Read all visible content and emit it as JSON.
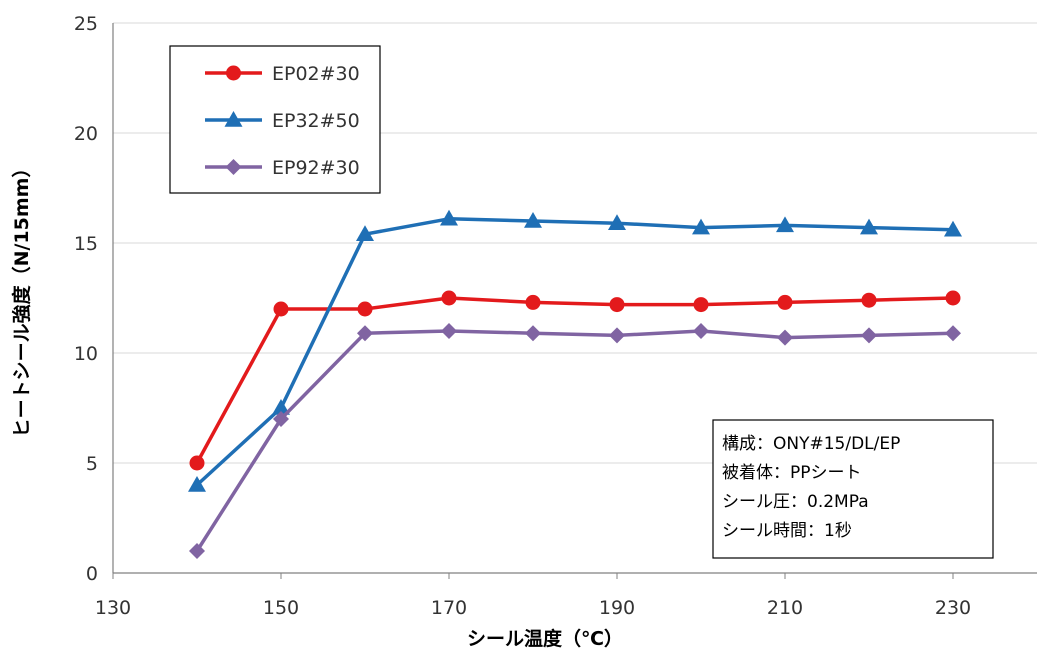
{
  "chart_data": {
    "type": "line",
    "xlabel": "シール温度（℃）",
    "ylabel": "ヒートシール強度（N/15mm）",
    "xlim": [
      130,
      240
    ],
    "ylim": [
      0,
      25
    ],
    "x_ticks": [
      130,
      150,
      170,
      190,
      210,
      230
    ],
    "y_ticks": [
      0,
      5,
      10,
      15,
      20,
      25
    ],
    "grid": "horizontal",
    "legend_position": "top-left",
    "x": [
      140,
      150,
      160,
      170,
      180,
      190,
      200,
      210,
      220,
      230
    ],
    "series": [
      {
        "name": "EP02#30",
        "color": "#e31a1c",
        "marker": "circle",
        "values": [
          5.0,
          12.0,
          12.0,
          12.5,
          12.3,
          12.2,
          12.2,
          12.3,
          12.4,
          12.5
        ]
      },
      {
        "name": "EP32#50",
        "color": "#1f6fb5",
        "marker": "triangle",
        "values": [
          4.0,
          7.5,
          15.4,
          16.1,
          16.0,
          15.9,
          15.7,
          15.8,
          15.7,
          15.6
        ]
      },
      {
        "name": "EP92#30",
        "color": "#8064a2",
        "marker": "diamond",
        "values": [
          1.0,
          7.0,
          10.9,
          11.0,
          10.9,
          10.8,
          11.0,
          10.7,
          10.8,
          10.9
        ]
      }
    ],
    "annotation_lines": [
      "構成：ONY#15/DL/EP",
      "被着体：PPシート",
      "シール圧：0.2MPa",
      "シール時間：1秒"
    ]
  }
}
